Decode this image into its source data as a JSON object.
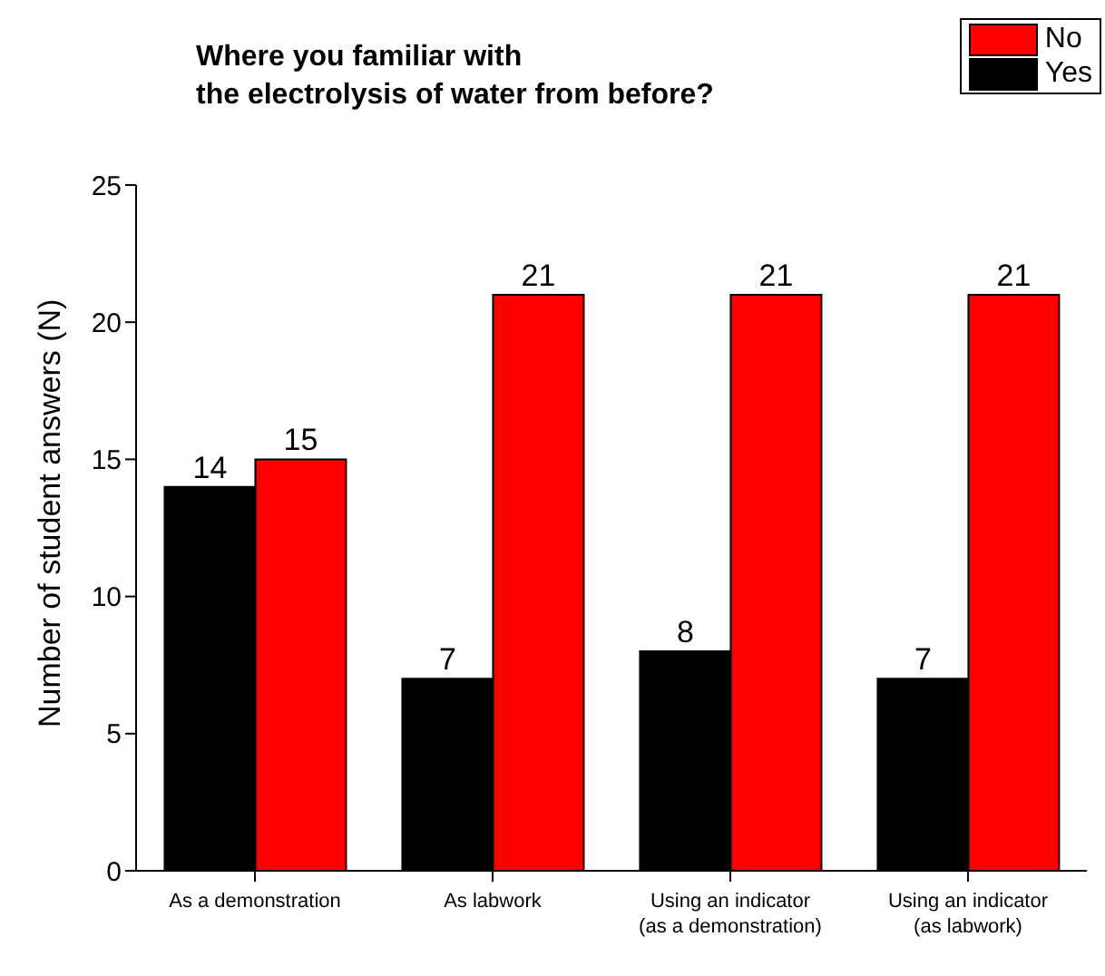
{
  "chart_data": {
    "type": "bar",
    "title": "Where you familiar with\nthe electrolysis of water from before?",
    "ylabel": "Number of student answers (N)",
    "categories": [
      "As a demonstration",
      "As labwork",
      "Using an indicator\n(as a demonstration)",
      "Using an indicator\n(as labwork)"
    ],
    "series": [
      {
        "name": "Yes",
        "color": "#000000",
        "values": [
          14,
          7,
          8,
          7
        ]
      },
      {
        "name": "No",
        "color": "#ff0000",
        "values": [
          15,
          21,
          21,
          21
        ]
      }
    ],
    "ylim": [
      0,
      25
    ],
    "yticks": [
      0,
      5,
      10,
      15,
      20,
      25
    ],
    "data_labels": true,
    "legend": "top right",
    "grid": false
  }
}
